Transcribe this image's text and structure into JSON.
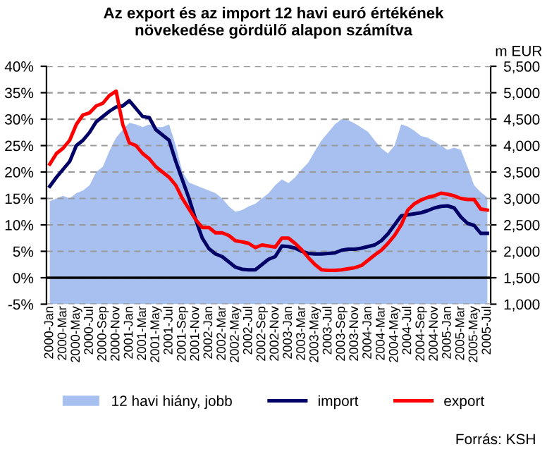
{
  "chart_data": {
    "type": "line",
    "title": "Az export és az import 12 havi euró értékének\nnövekedése gördülő alapon számítva",
    "y2label": "m EUR",
    "categories": [
      "2000-Jan",
      null,
      "2000-Mar",
      null,
      "2000-May",
      null,
      "2000-Jul",
      null,
      "2000-Sep",
      null,
      "2000-Nov",
      null,
      "2001-Jan",
      null,
      "2001-Mar",
      null,
      "2001-May",
      null,
      "2001-Jul",
      null,
      "2001-Sep",
      null,
      "2001-Nov",
      null,
      "2002-Jan",
      null,
      "2002-Mar",
      null,
      "2002-May",
      null,
      "2002-Jul",
      null,
      "2002-Sep",
      null,
      "2002-Nov",
      null,
      "2003-Jan",
      null,
      "2003-Mar",
      null,
      "2003-May",
      null,
      "2003-Jul",
      null,
      "2003-Sep",
      null,
      "2003-Nov",
      null,
      "2004-Jan",
      null,
      "2004-Mar",
      null,
      "2004-May",
      null,
      "2004-Jul",
      null,
      "2004-Sep",
      null,
      "2004-Nov",
      null,
      "2005-Jan",
      null,
      "2005-Mar",
      null,
      "2005-May",
      null,
      "2005-Jul"
    ],
    "series": [
      {
        "name": "12 havi hiány, jobb",
        "type": "area",
        "axis": "y2",
        "color": "#a8c0f0",
        "values": [
          2950,
          3000,
          3050,
          3000,
          3100,
          3150,
          3250,
          3500,
          3600,
          3900,
          4150,
          4300,
          4430,
          4400,
          4350,
          4400,
          4350,
          4350,
          4400,
          4000,
          3500,
          3300,
          3250,
          3200,
          3150,
          3100,
          3000,
          2850,
          2750,
          2780,
          2850,
          2900,
          3000,
          3100,
          3250,
          3360,
          3290,
          3400,
          3550,
          3680,
          3900,
          4100,
          4250,
          4400,
          4500,
          4480,
          4420,
          4340,
          4260,
          4100,
          3950,
          3850,
          4000,
          4400,
          4360,
          4280,
          4180,
          4150,
          4080,
          4000,
          3920,
          3960,
          3920,
          3600,
          3250,
          3120,
          3020
        ]
      },
      {
        "name": "import",
        "color": "#000066",
        "values": [
          17.3,
          19,
          20.5,
          22,
          25,
          26,
          27.5,
          29.5,
          30.5,
          31.5,
          32.3,
          32.5,
          33.5,
          32,
          30.5,
          30.3,
          28,
          27,
          26,
          22,
          18.5,
          15,
          11,
          7.5,
          5.5,
          4.5,
          4,
          3,
          2,
          1.6,
          1.5,
          1.5,
          2.5,
          3.5,
          4,
          6,
          5.9,
          5.6,
          5,
          4.6,
          4.5,
          4.5,
          4.6,
          4.7,
          5.2,
          5.4,
          5.4,
          5.6,
          5.9,
          6.2,
          7,
          8.3,
          10,
          11.7,
          11.9,
          12.1,
          12.3,
          12.7,
          13.2,
          13.5,
          13.6,
          13.2,
          11.5,
          10.3,
          9.9,
          8.4,
          8.4
        ]
      },
      {
        "name": "export",
        "color": "#ff0000",
        "values": [
          21.5,
          23.5,
          24.5,
          26,
          29,
          30.8,
          31.2,
          32.5,
          33,
          34.5,
          35.3,
          29,
          25.5,
          25,
          23.5,
          22.5,
          21,
          20,
          19,
          17.5,
          15,
          13,
          11,
          9.5,
          9.5,
          8.5,
          8.5,
          8,
          7,
          6.8,
          6.5,
          5.7,
          6.2,
          6,
          5.8,
          7.5,
          7.5,
          6.5,
          5.3,
          3.8,
          2.5,
          1.5,
          1.4,
          1.4,
          1.5,
          1.7,
          1.9,
          2.3,
          3.3,
          4.3,
          5.2,
          6.5,
          8,
          10,
          12.8,
          14,
          14.7,
          15.2,
          15.5,
          16,
          15.8,
          15.5,
          15,
          14.8,
          14.8,
          13,
          12.8
        ]
      }
    ],
    "ylim": [
      -5,
      40
    ],
    "yticks": [
      {
        "value": -5,
        "label": "-5%"
      },
      {
        "value": 0,
        "label": "0%"
      },
      {
        "value": 5,
        "label": "5%"
      },
      {
        "value": 10,
        "label": "10%"
      },
      {
        "value": 15,
        "label": "15%"
      },
      {
        "value": 20,
        "label": "20%"
      },
      {
        "value": 25,
        "label": "25%"
      },
      {
        "value": 30,
        "label": "30%"
      },
      {
        "value": 35,
        "label": "35%"
      },
      {
        "value": 40,
        "label": "40%"
      }
    ],
    "y2lim": [
      1000,
      5500
    ],
    "y2ticks": [
      {
        "value": 1000,
        "label": "1,000"
      },
      {
        "value": 1500,
        "label": "1,500"
      },
      {
        "value": 2000,
        "label": "2,000"
      },
      {
        "value": 2500,
        "label": "2,500"
      },
      {
        "value": 3000,
        "label": "3,000"
      },
      {
        "value": 3500,
        "label": "3,500"
      },
      {
        "value": 4000,
        "label": "4,000"
      },
      {
        "value": 4500,
        "label": "4,500"
      },
      {
        "value": 5000,
        "label": "5,000"
      },
      {
        "value": 5500,
        "label": "5,500"
      }
    ],
    "ref_lines": [
      {
        "axis": "y",
        "value": 0,
        "color": "#000000"
      }
    ],
    "grid": "y",
    "legend": "bottom",
    "annotations": [
      "Forrás: KSH"
    ]
  }
}
